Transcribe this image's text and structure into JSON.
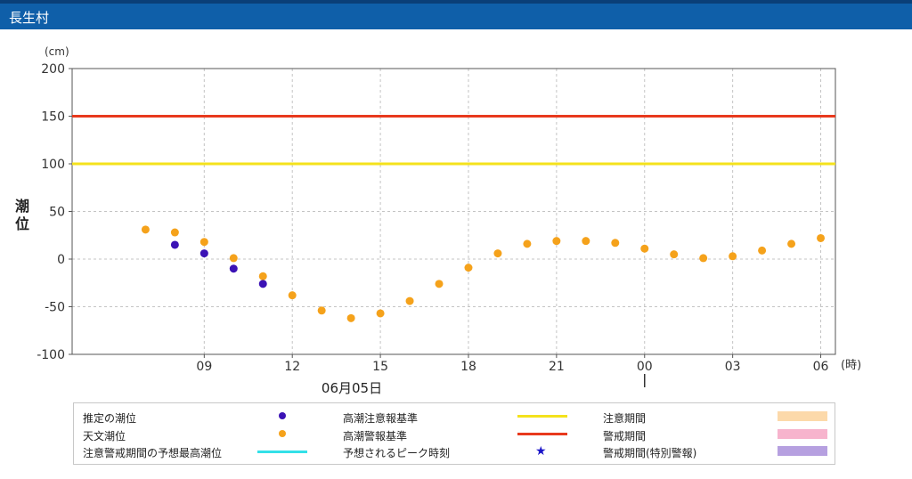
{
  "header": {
    "title": "長生村",
    "color": "#0f5fa9"
  },
  "chart_data": {
    "type": "scatter",
    "y_unit_label": "(cm)",
    "x_unit_label": "(時)",
    "ylabel_chars": [
      "潮",
      "位"
    ],
    "ylim": [
      -100,
      200
    ],
    "y_ticks": [
      -100,
      -50,
      0,
      50,
      100,
      150,
      200
    ],
    "xlim_hours": [
      4.5,
      30.5
    ],
    "x_ticks": [
      {
        "h": 9,
        "label": "09"
      },
      {
        "h": 12,
        "label": "12"
      },
      {
        "h": 15,
        "label": "15"
      },
      {
        "h": 18,
        "label": "18"
      },
      {
        "h": 21,
        "label": "21"
      },
      {
        "h": 24,
        "label": "00"
      },
      {
        "h": 27,
        "label": "03"
      },
      {
        "h": 30,
        "label": "06"
      }
    ],
    "date_label": "06月05日",
    "day_boundary_hour": 24,
    "grid": true,
    "thresholds": [
      {
        "name": "高潮警報基準",
        "value": 150,
        "color": "#e8391d"
      },
      {
        "name": "高潮注意報基準",
        "value": 100,
        "color": "#f4e21c"
      }
    ],
    "series": [
      {
        "name": "天文潮位",
        "color": "#f5a21b",
        "x": [
          7,
          8,
          9,
          10,
          11,
          12,
          13,
          14,
          15,
          16,
          17,
          18,
          19,
          20,
          21,
          22,
          23,
          24,
          25,
          26,
          27,
          28,
          29,
          30
        ],
        "y": [
          31,
          28,
          18,
          1,
          -18,
          -38,
          -54,
          -62,
          -57,
          -44,
          -26,
          -9,
          6,
          16,
          19,
          19,
          17,
          11,
          5,
          1,
          3,
          9,
          16,
          22
        ]
      },
      {
        "name": "推定の潮位",
        "color": "#3b12b5",
        "x": [
          8,
          9,
          10,
          11
        ],
        "y": [
          15,
          6,
          -10,
          -26
        ]
      }
    ]
  },
  "legend": {
    "estimated": "推定の潮位",
    "astronomical": "天文潮位",
    "predicted_max": "注意警戒期間の予想最高潮位",
    "caution_std": "高潮注意報基準",
    "warning_std": "高潮警報基準",
    "peak_time": "予想されるピーク時刻",
    "caution_period": "注意期間",
    "warning_period": "警戒期間",
    "special_period": "警戒期間(特別警報)",
    "colors": {
      "estimated": "#3b12b5",
      "astronomical": "#f5a21b",
      "predicted_max": "#33e0e8",
      "caution_std": "#f4e21c",
      "warning_std": "#e8391d",
      "peak_star": "#1a14c8",
      "caution_period": "#fcd9aa",
      "warning_period": "#f7b4cd",
      "special_period": "#b6a0e0"
    }
  }
}
